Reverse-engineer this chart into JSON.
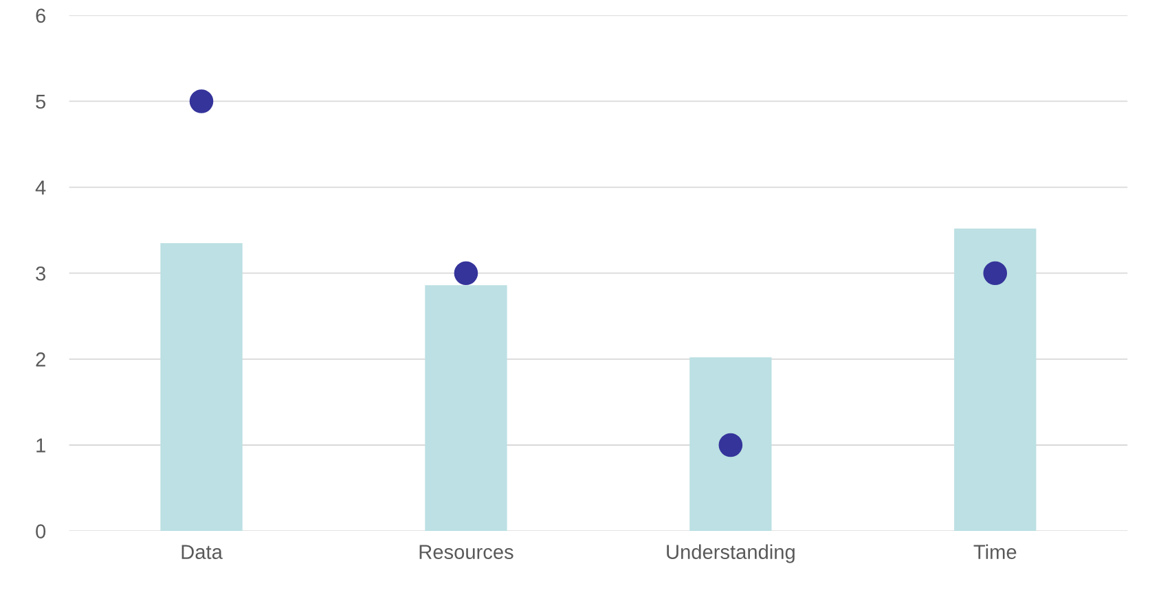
{
  "chart_data": {
    "type": "bar",
    "categories": [
      "Data",
      "Resources",
      "Understanding",
      "Time"
    ],
    "series": [
      {
        "color": "#bce0e3",
        "values": [
          3.35,
          2.86,
          2.02,
          3.52
        ]
      },
      {
        "type": "scatter",
        "color": "#35349b",
        "values": [
          5,
          3,
          1,
          3
        ],
        "marker": "circle"
      }
    ],
    "ylim": [
      0,
      6
    ],
    "yticks": [
      0,
      1,
      2,
      3,
      4,
      5,
      6
    ],
    "grid": "y",
    "legend": false
  }
}
